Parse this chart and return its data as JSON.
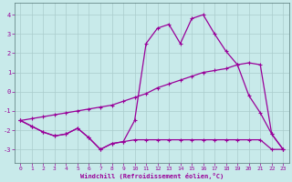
{
  "xlabel": "Windchill (Refroidissement éolien,°C)",
  "bg_color": "#c8eaea",
  "line_color": "#990099",
  "grid_color": "#aacccc",
  "hours": [
    0,
    1,
    2,
    3,
    4,
    5,
    6,
    7,
    8,
    9,
    10,
    11,
    12,
    13,
    14,
    15,
    16,
    17,
    18,
    19,
    20,
    21,
    22,
    23
  ],
  "series1": [
    -1.5,
    -1.8,
    -2.1,
    -2.3,
    -2.2,
    -1.9,
    -2.4,
    -3.0,
    -2.7,
    -2.6,
    -2.5,
    -2.5,
    -2.5,
    -2.5,
    -2.5,
    -2.5,
    -2.5,
    -2.5,
    -2.5,
    -2.5,
    -2.5,
    -2.5,
    -3.0,
    -3.0
  ],
  "series2": [
    -1.5,
    -1.4,
    -1.3,
    -1.2,
    -1.1,
    -1.0,
    -0.9,
    -0.8,
    -0.7,
    -0.5,
    -0.3,
    -0.1,
    0.2,
    0.4,
    0.6,
    0.8,
    1.0,
    1.1,
    1.2,
    1.4,
    1.5,
    1.4,
    -2.2,
    -3.0
  ],
  "series3": [
    -1.5,
    -1.8,
    -2.1,
    -2.3,
    -2.2,
    -1.9,
    -2.4,
    -3.0,
    -2.7,
    -2.6,
    -1.5,
    2.5,
    3.3,
    3.5,
    2.5,
    3.8,
    4.0,
    3.0,
    2.1,
    1.4,
    -0.2,
    -1.1,
    -2.2,
    -3.0
  ],
  "ylim": [
    -3.7,
    4.6
  ],
  "xlim": [
    -0.5,
    23.5
  ],
  "yticks": [
    -3,
    -2,
    -1,
    0,
    1,
    2,
    3,
    4
  ],
  "xticks": [
    0,
    1,
    2,
    3,
    4,
    5,
    6,
    7,
    8,
    9,
    10,
    11,
    12,
    13,
    14,
    15,
    16,
    17,
    18,
    19,
    20,
    21,
    22,
    23
  ]
}
